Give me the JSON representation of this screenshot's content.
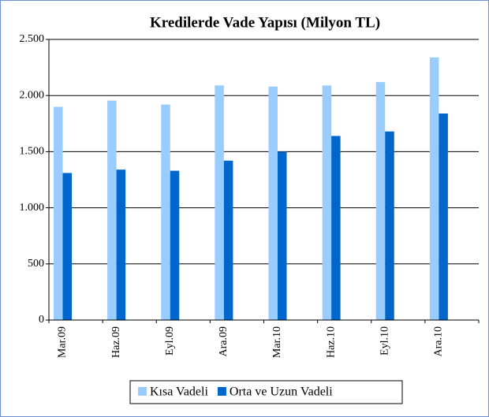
{
  "chart_data": {
    "type": "bar",
    "title": "Kredilerde Vade Yapısı  (Milyon TL)",
    "categories": [
      "Mar.09",
      "Haz.09",
      "Eyl.09",
      "Ara.09",
      "Mar.10",
      "Haz.10",
      "Eyl.10",
      "Ara.10"
    ],
    "series": [
      {
        "name": "Kısa Vadeli",
        "color": "#99ccff",
        "values": [
          1900,
          1955,
          1920,
          2090,
          2080,
          2090,
          2120,
          2340
        ]
      },
      {
        "name": "Orta ve Uzun Vadeli",
        "color": "#0066cc",
        "values": [
          1310,
          1340,
          1330,
          1420,
          1500,
          1640,
          1680,
          1840
        ]
      }
    ],
    "ylim": [
      0,
      2500
    ],
    "yticks": [
      0,
      500,
      {
        "value": 1000,
        "label": "1.000"
      },
      {
        "value": 1500,
        "label": "1.500"
      },
      {
        "value": 2000,
        "label": "2.000"
      },
      {
        "value": 2500,
        "label": "2.500"
      }
    ],
    "grid": true,
    "legend": "bottom"
  }
}
